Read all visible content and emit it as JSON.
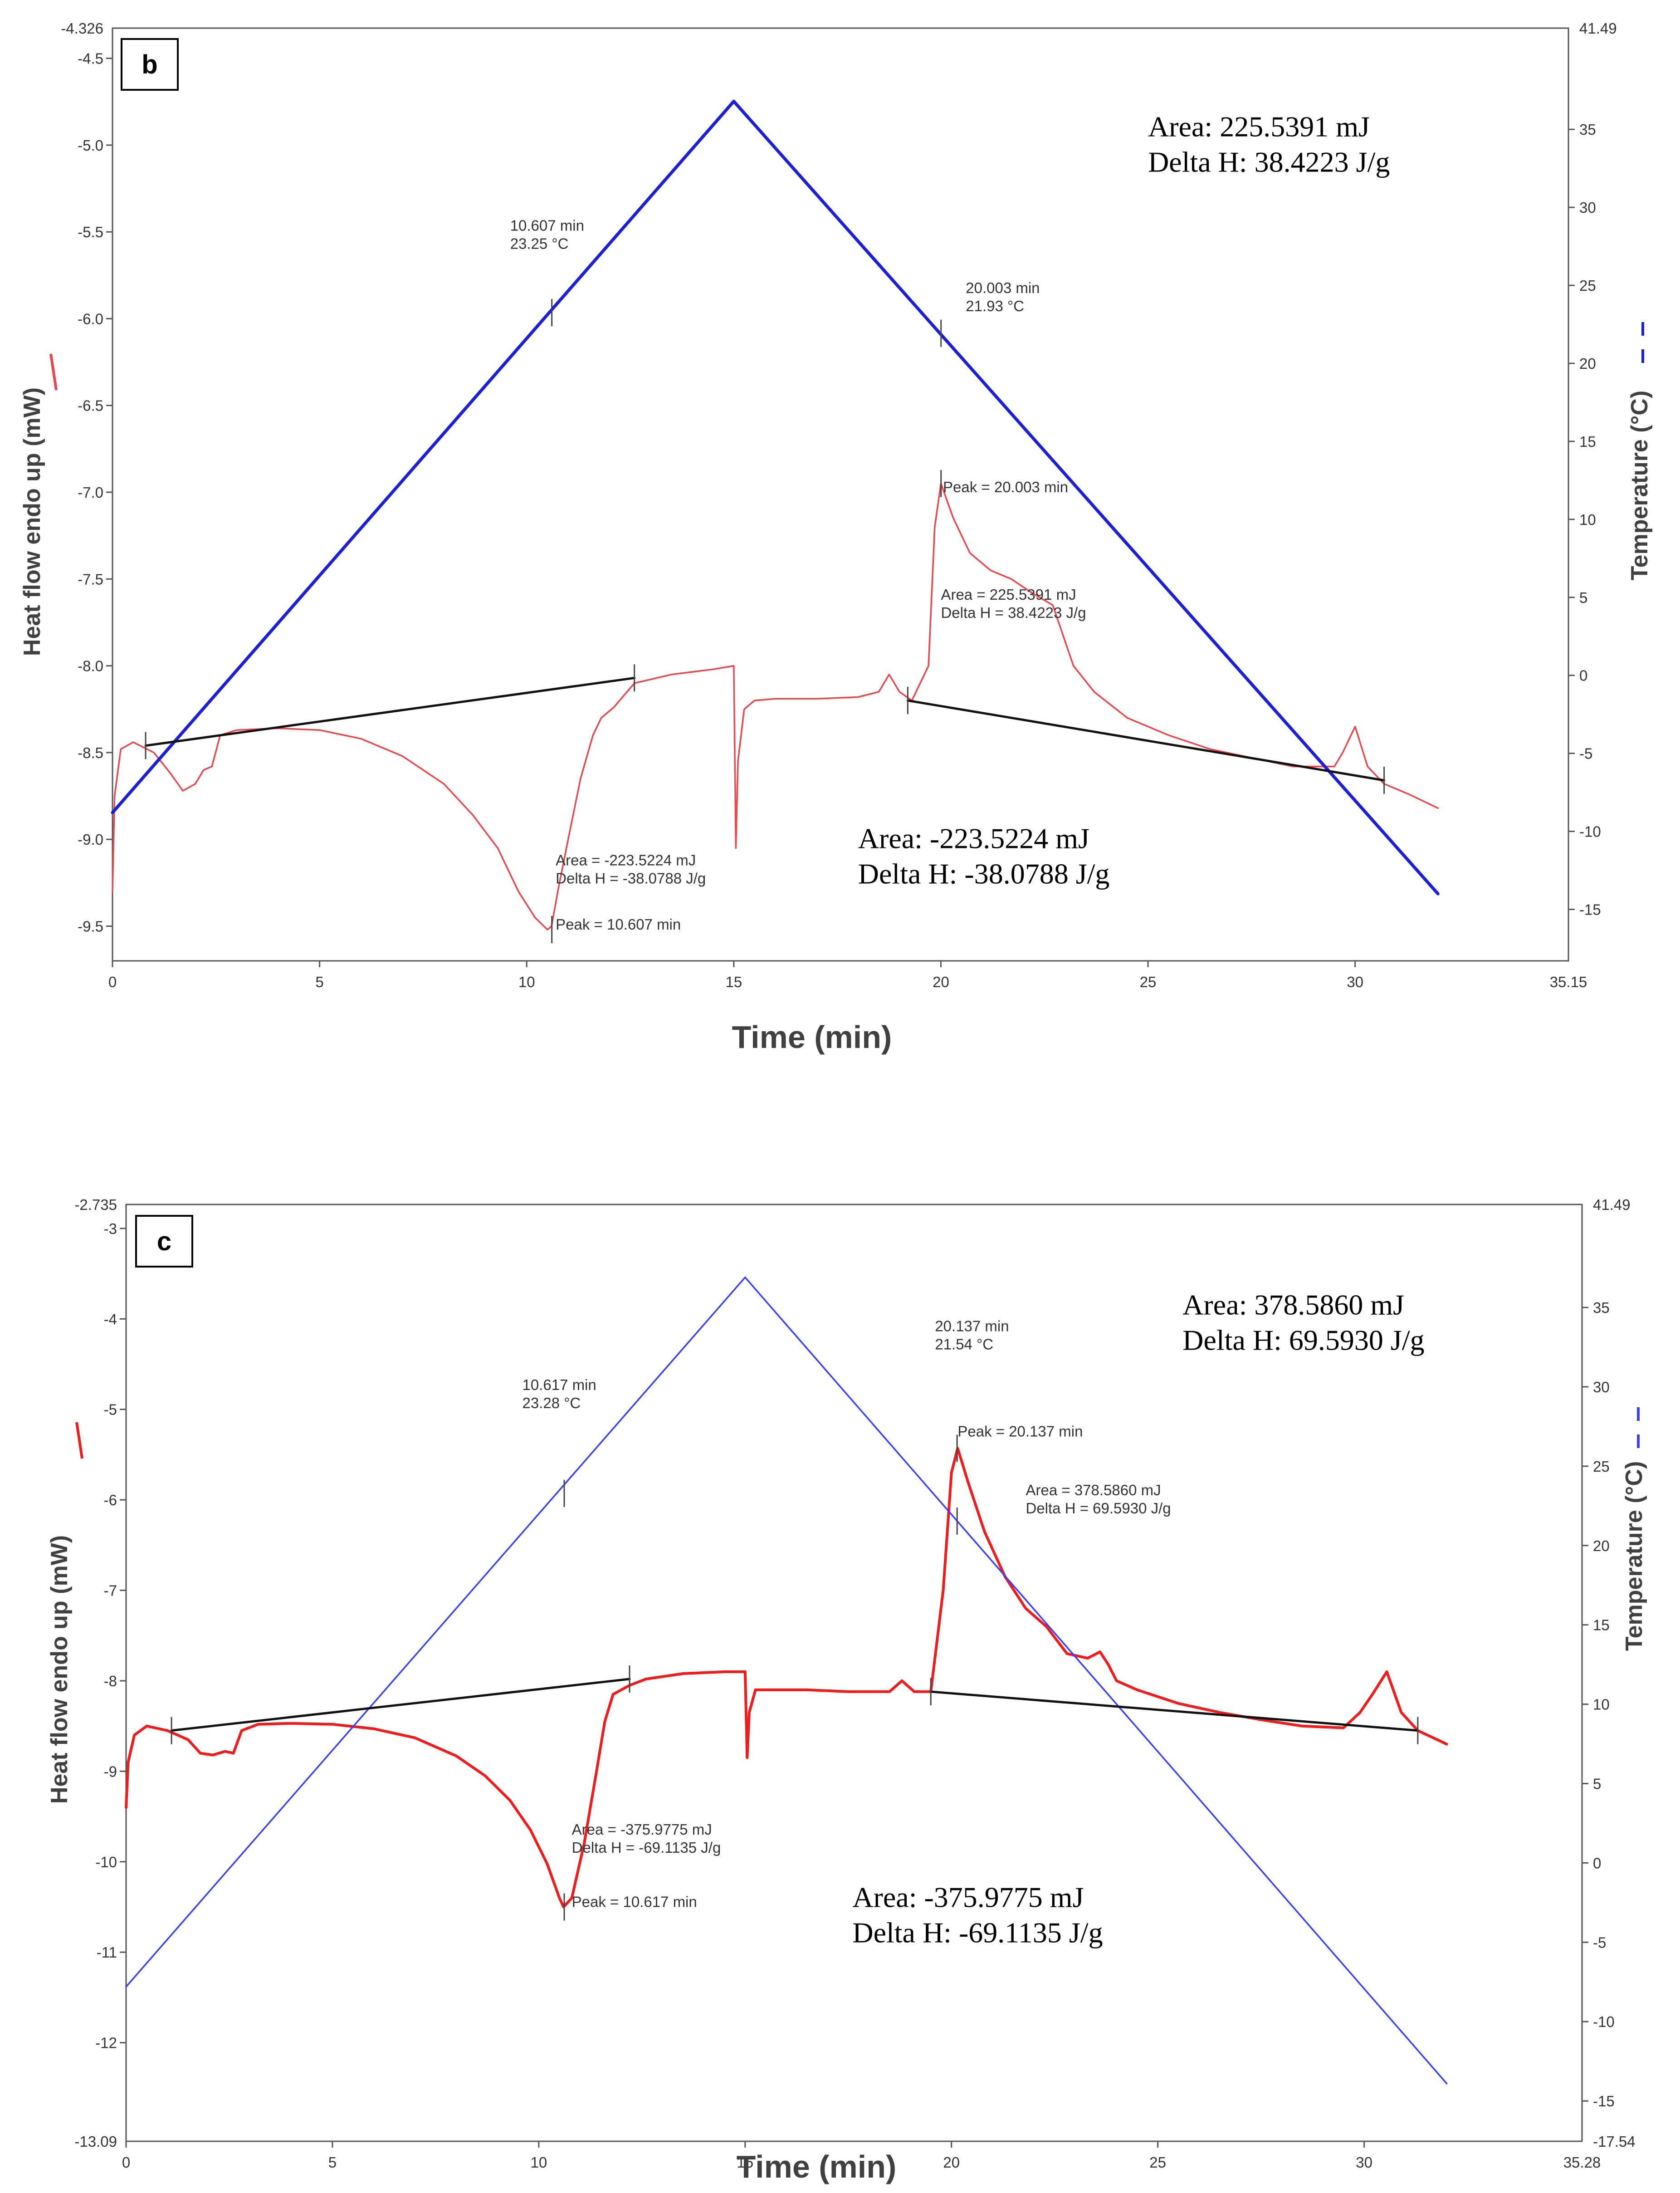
{
  "chart_data": [
    {
      "panel": "b",
      "type": "line",
      "xlabel": "Time (min)",
      "ylabel": "Heat flow endo up (mW)",
      "y2label": "Temperature (°C)",
      "xlim": [
        0,
        35.15
      ],
      "ylim": [
        -9.7,
        -4.326
      ],
      "y2lim": [
        -18.3,
        41.49
      ],
      "xticks": [
        0,
        5,
        10,
        15,
        20,
        25,
        30
      ],
      "xtick_labels": [
        "0",
        "5",
        "10",
        "15",
        "20",
        "25",
        "30"
      ],
      "x_end_label": "35.15",
      "yticks": [
        -4.5,
        -5.0,
        -5.5,
        -6.0,
        -6.5,
        -7.0,
        -7.5,
        -8.0,
        -8.5,
        -9.0,
        -9.5
      ],
      "ytick_labels": [
        "-4.5",
        "-5.0",
        "-5.5",
        "-6.0",
        "-6.5",
        "-7.0",
        "-7.5",
        "-8.0",
        "-8.5",
        "-9.0",
        "-9.5"
      ],
      "y_top_label": "-4.326",
      "y2ticks": [
        35,
        30,
        25,
        20,
        15,
        10,
        5,
        0,
        -5,
        -10,
        -15
      ],
      "y2tick_labels": [
        "35",
        "30",
        "25",
        "20",
        "15",
        "10",
        "5",
        "0",
        "-5",
        "-10",
        "-15"
      ],
      "y2_top_label": "41.49",
      "y2_bottom_label": "",
      "series": [
        {
          "name": "Heat flow",
          "axis": "left",
          "color": "#e8474d",
          "x": [
            0,
            0.05,
            0.2,
            0.5,
            1.0,
            1.4,
            1.7,
            2.0,
            2.2,
            2.4,
            2.6,
            3.0,
            4.0,
            5.0,
            6.0,
            7.0,
            8.0,
            8.7,
            9.3,
            9.8,
            10.2,
            10.5,
            10.6,
            10.75,
            11.0,
            11.3,
            11.6,
            11.8,
            12.1,
            12.6,
            13.5,
            14.5,
            15.0,
            15.05,
            15.1,
            15.25,
            15.5,
            16.0,
            17.0,
            18.0,
            18.5,
            18.75,
            19.0,
            19.3,
            19.7,
            19.85,
            20.0,
            20.3,
            20.7,
            21.2,
            21.7,
            22.2,
            22.7,
            23.2,
            23.7,
            24.5,
            25.5,
            26.5,
            27.5,
            28.5,
            29.5,
            29.7,
            30.0,
            30.3,
            30.7,
            31.3,
            32.0
          ],
          "y": [
            -9.3,
            -8.75,
            -8.48,
            -8.44,
            -8.5,
            -8.62,
            -8.72,
            -8.68,
            -8.6,
            -8.58,
            -8.4,
            -8.37,
            -8.36,
            -8.37,
            -8.42,
            -8.52,
            -8.68,
            -8.86,
            -9.05,
            -9.3,
            -9.45,
            -9.52,
            -9.5,
            -9.3,
            -9.0,
            -8.65,
            -8.4,
            -8.3,
            -8.24,
            -8.1,
            -8.05,
            -8.02,
            -8.0,
            -9.05,
            -8.55,
            -8.25,
            -8.2,
            -8.19,
            -8.19,
            -8.18,
            -8.15,
            -8.05,
            -8.15,
            -8.2,
            -8.0,
            -7.2,
            -6.95,
            -7.15,
            -7.35,
            -7.45,
            -7.5,
            -7.58,
            -7.65,
            -8.0,
            -8.15,
            -8.3,
            -8.4,
            -8.48,
            -8.53,
            -8.58,
            -8.58,
            -8.5,
            -8.35,
            -8.58,
            -8.68,
            -8.74,
            -8.82
          ]
        },
        {
          "name": "Temperature",
          "axis": "right",
          "color": "#1c1fd8",
          "x": [
            0,
            15.0,
            32.0
          ],
          "y": [
            -8.8,
            36.8,
            -14.0
          ]
        },
        {
          "name": "Baseline (endotherm)",
          "axis": "left",
          "color": "#111111",
          "x": [
            0.8,
            12.6
          ],
          "y": [
            -8.46,
            -8.07
          ]
        },
        {
          "name": "Baseline (exotherm)",
          "axis": "left",
          "color": "#111111",
          "x": [
            19.2,
            30.7
          ],
          "y": [
            -8.2,
            -8.66
          ]
        }
      ],
      "markers": [
        {
          "x": 0.8,
          "y": -8.46,
          "axis": "left"
        },
        {
          "x": 12.6,
          "y": -8.07,
          "axis": "left"
        },
        {
          "x": 19.2,
          "y": -8.2,
          "axis": "left"
        },
        {
          "x": 30.7,
          "y": -8.66,
          "axis": "left"
        },
        {
          "x": 10.607,
          "y": -9.52,
          "axis": "left"
        },
        {
          "x": 20.003,
          "y": -6.95,
          "axis": "left"
        },
        {
          "x": 10.607,
          "y": 23.25,
          "axis": "right"
        },
        {
          "x": 20.003,
          "y": 21.93,
          "axis": "right"
        }
      ],
      "annotations": [
        {
          "lines": [
            "10.607 min",
            "23.25 °C"
          ],
          "x": 9.6,
          "y": 28.5,
          "axis": "right"
        },
        {
          "lines": [
            "20.003 min",
            "21.93 °C"
          ],
          "x": 20.6,
          "y": 24.5,
          "axis": "right"
        },
        {
          "lines": [
            "Peak = 20.003 min"
          ],
          "x": 20.05,
          "y": -7.0,
          "axis": "left"
        },
        {
          "lines": [
            "Area = 225.5391 mJ",
            "Delta H = 38.4223 J/g"
          ],
          "x": 20.0,
          "y": -7.62,
          "axis": "left"
        },
        {
          "lines": [
            "Area = -223.5224 mJ",
            "Delta H = -38.0788 J/g"
          ],
          "x": 10.7,
          "y": -9.15,
          "axis": "left"
        },
        {
          "lines": [
            "Peak = 10.607 min"
          ],
          "x": 10.7,
          "y": -9.52,
          "axis": "left"
        }
      ],
      "big_annotations": [
        {
          "lines": [
            "Area: 225.5391 mJ",
            "Delta H: 38.4223 J/g"
          ],
          "x": 25.0,
          "y": -4.95,
          "axis": "left"
        },
        {
          "lines": [
            "Area: -223.5224 mJ",
            "Delta H: -38.0788 J/g"
          ],
          "x": 18.0,
          "y": -9.05,
          "axis": "left"
        }
      ]
    },
    {
      "panel": "c",
      "type": "line",
      "xlabel": "Time (min)",
      "ylabel": "Heat flow endo up (mW)",
      "y2label": "Temperature (°C)",
      "xlim": [
        0,
        35.28
      ],
      "ylim": [
        -13.09,
        -2.735
      ],
      "y2lim": [
        -17.54,
        41.49
      ],
      "xticks": [
        0,
        5,
        10,
        15,
        20,
        25,
        30
      ],
      "xtick_labels": [
        "0",
        "5",
        "10",
        "15",
        "20",
        "25",
        "30"
      ],
      "x_end_label": "35.28",
      "yticks": [
        -3,
        -4,
        -5,
        -6,
        -7,
        -8,
        -9,
        -10,
        -11,
        -12
      ],
      "ytick_labels": [
        "-3",
        "-4",
        "-5",
        "-6",
        "-7",
        "-8",
        "-9",
        "-10",
        "-11",
        "-12"
      ],
      "y_top_label": "-2.735",
      "y_bottom_label": "-13.09",
      "y2ticks": [
        35,
        30,
        25,
        20,
        15,
        10,
        5,
        0,
        -5,
        -10,
        -15
      ],
      "y2tick_labels": [
        "35",
        "30",
        "25",
        "20",
        "15",
        "10",
        "5",
        "0",
        "-5",
        "-10",
        "-15"
      ],
      "y2_top_label": "41.49",
      "y2_bottom_label": "-17.54",
      "series": [
        {
          "name": "Heat flow",
          "axis": "left",
          "color": "#ee1c1c",
          "x": [
            0,
            0.05,
            0.2,
            0.5,
            1.0,
            1.5,
            1.8,
            2.1,
            2.4,
            2.6,
            2.8,
            3.2,
            4.0,
            5.0,
            6.0,
            7.0,
            8.0,
            8.7,
            9.3,
            9.8,
            10.2,
            10.5,
            10.6,
            10.8,
            11.1,
            11.4,
            11.6,
            11.8,
            12.2,
            12.6,
            13.5,
            14.5,
            15.0,
            15.05,
            15.1,
            15.25,
            15.5,
            16.5,
            17.5,
            18.5,
            18.8,
            19.1,
            19.5,
            19.8,
            20.0,
            20.15,
            20.4,
            20.8,
            21.3,
            21.8,
            22.3,
            22.8,
            23.3,
            23.6,
            23.8,
            24.0,
            24.5,
            25.5,
            26.5,
            27.5,
            28.5,
            29.5,
            29.9,
            30.2,
            30.55,
            30.9,
            31.3,
            32.0
          ],
          "y": [
            -9.4,
            -8.9,
            -8.6,
            -8.5,
            -8.55,
            -8.65,
            -8.8,
            -8.82,
            -8.78,
            -8.8,
            -8.55,
            -8.48,
            -8.47,
            -8.48,
            -8.53,
            -8.63,
            -8.83,
            -9.05,
            -9.32,
            -9.65,
            -10.02,
            -10.4,
            -10.5,
            -10.4,
            -9.8,
            -9.0,
            -8.45,
            -8.15,
            -8.05,
            -7.98,
            -7.92,
            -7.9,
            -7.9,
            -8.85,
            -8.35,
            -8.1,
            -8.1,
            -8.1,
            -8.12,
            -8.12,
            -8.0,
            -8.12,
            -8.12,
            -7.0,
            -5.7,
            -5.43,
            -5.8,
            -6.35,
            -6.85,
            -7.2,
            -7.4,
            -7.7,
            -7.75,
            -7.68,
            -7.82,
            -8.0,
            -8.1,
            -8.25,
            -8.35,
            -8.43,
            -8.5,
            -8.52,
            -8.35,
            -8.15,
            -7.9,
            -8.35,
            -8.55,
            -8.7
          ]
        },
        {
          "name": "Temperature",
          "axis": "right",
          "color": "#3a40f5",
          "x": [
            0,
            15.0,
            32.0
          ],
          "y": [
            -7.8,
            36.9,
            -13.9
          ]
        },
        {
          "name": "Baseline (endotherm)",
          "axis": "left",
          "color": "#111111",
          "x": [
            1.1,
            12.2
          ],
          "y": [
            -8.55,
            -7.98
          ]
        },
        {
          "name": "Baseline (exotherm)",
          "axis": "left",
          "color": "#111111",
          "x": [
            19.5,
            31.3
          ],
          "y": [
            -8.12,
            -8.55
          ]
        }
      ],
      "markers": [
        {
          "x": 1.1,
          "y": -8.55,
          "axis": "left"
        },
        {
          "x": 12.2,
          "y": -7.98,
          "axis": "left"
        },
        {
          "x": 19.5,
          "y": -8.12,
          "axis": "left"
        },
        {
          "x": 31.3,
          "y": -8.55,
          "axis": "left"
        },
        {
          "x": 10.617,
          "y": -10.5,
          "axis": "left"
        },
        {
          "x": 20.137,
          "y": -5.43,
          "axis": "left"
        },
        {
          "x": 10.617,
          "y": 23.28,
          "axis": "right"
        },
        {
          "x": 20.137,
          "y": 21.54,
          "axis": "right"
        }
      ],
      "annotations": [
        {
          "lines": [
            "10.617 min",
            "23.28 °C"
          ],
          "x": 9.6,
          "y": 29.8,
          "axis": "right"
        },
        {
          "lines": [
            "20.137 min",
            "21.54 °C"
          ],
          "x": 19.6,
          "y": 33.5,
          "axis": "right"
        },
        {
          "lines": [
            "Peak = 20.137 min"
          ],
          "x": 20.15,
          "y": -5.3,
          "axis": "left"
        },
        {
          "lines": [
            "Area = 378.5860 mJ",
            "Delta H = 69.5930 J/g"
          ],
          "x": 21.8,
          "y": -5.95,
          "axis": "left"
        },
        {
          "lines": [
            "Area = -375.9775 mJ",
            "Delta H = -69.1135 J/g"
          ],
          "x": 10.8,
          "y": -9.7,
          "axis": "left"
        },
        {
          "lines": [
            "Peak = 10.617 min"
          ],
          "x": 10.8,
          "y": -10.5,
          "axis": "left"
        }
      ],
      "big_annotations": [
        {
          "lines": [
            "Area: 378.5860 mJ",
            "Delta H: 69.5930 J/g"
          ],
          "x": 25.6,
          "y": -3.95,
          "axis": "left"
        },
        {
          "lines": [
            "Area: -375.9775 mJ",
            "Delta H: -69.1135 J/g"
          ],
          "x": 17.6,
          "y": -10.5,
          "axis": "left"
        }
      ]
    }
  ]
}
